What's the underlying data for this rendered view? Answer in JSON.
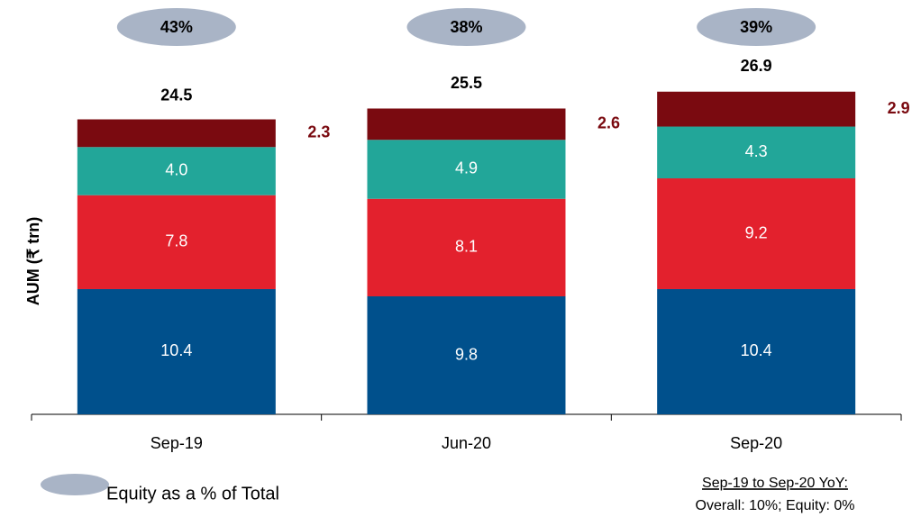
{
  "chart_data": {
    "type": "stacked_bar",
    "y_axis_label": "AUM (₹ trn)",
    "categories": [
      "Sep-19",
      "Jun-20",
      "Sep-20"
    ],
    "series": [
      {
        "color": "#00508C",
        "values": [
          10.4,
          9.8,
          10.4
        ],
        "value_labels": [
          "10.4",
          "9.8",
          "10.4"
        ]
      },
      {
        "color": "#E3212D",
        "values": [
          7.8,
          8.1,
          9.2
        ],
        "value_labels": [
          "7.8",
          "8.1",
          "9.2"
        ]
      },
      {
        "color": "#22A699",
        "values": [
          4.0,
          4.9,
          4.3
        ],
        "value_labels": [
          "4.0",
          "4.9",
          "4.3"
        ]
      },
      {
        "color": "#7A0A10",
        "values": [
          2.3,
          2.6,
          2.9
        ],
        "value_labels": [
          "2.3",
          "2.6",
          "2.9"
        ]
      }
    ],
    "totals": {
      "values": [
        24.5,
        25.5,
        26.9
      ],
      "value_labels": [
        "24.5",
        "25.5",
        "26.9"
      ]
    },
    "equity_share": {
      "color": "#A9B4C6",
      "values": [
        43,
        38,
        39
      ],
      "value_labels": [
        "43%",
        "38%",
        "39%"
      ]
    },
    "legend": "Equity as a % of Total",
    "note_heading": "Sep-19 to Sep-20 YoY:",
    "note": "Overall: 10%; Equity: 0%",
    "ylim": [
      0,
      30
    ]
  }
}
